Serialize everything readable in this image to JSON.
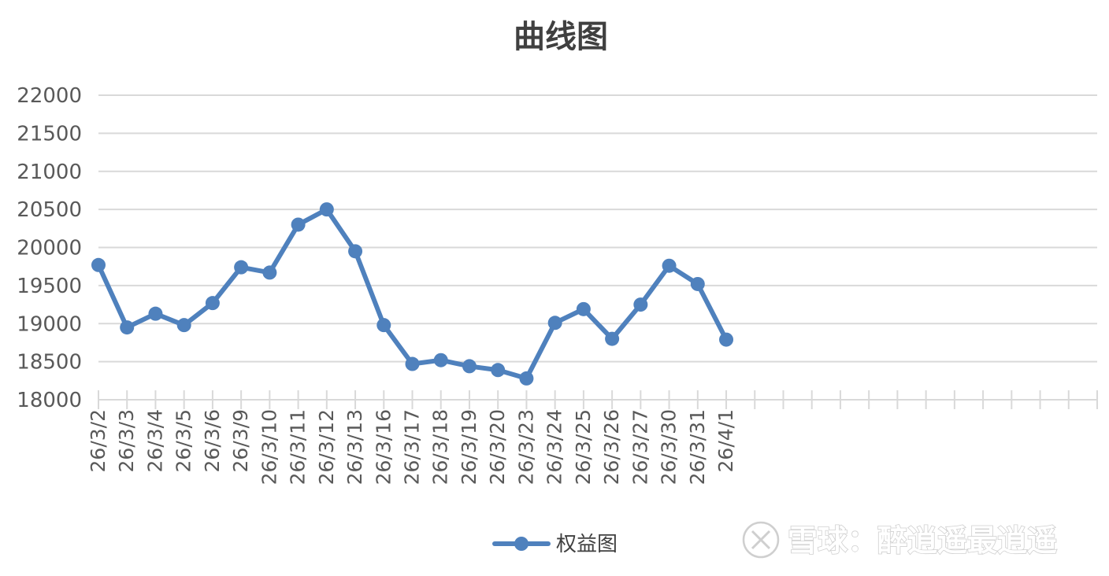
{
  "chart_data": {
    "type": "line",
    "title": "曲线图",
    "xlabel": "",
    "ylabel": "",
    "ylim": [
      18000,
      22000
    ],
    "yticks": [
      18000,
      18500,
      19000,
      19500,
      20000,
      20500,
      21000,
      21500,
      22000
    ],
    "categories": [
      "26/3/2",
      "26/3/3",
      "26/3/4",
      "26/3/5",
      "26/3/6",
      "26/3/9",
      "26/3/10",
      "26/3/11",
      "26/3/12",
      "26/3/13",
      "26/3/16",
      "26/3/17",
      "26/3/18",
      "26/3/19",
      "26/3/20",
      "26/3/23",
      "26/3/24",
      "26/3/25",
      "26/3/26",
      "26/3/27",
      "26/3/30",
      "26/3/31",
      "26/4/1"
    ],
    "total_slots": 35,
    "series": [
      {
        "name": "权益图",
        "color": "#4f81bd",
        "values": [
          19770,
          18950,
          19130,
          18980,
          19270,
          19740,
          19670,
          20300,
          20500,
          19950,
          18980,
          18470,
          18520,
          18440,
          18390,
          18280,
          19010,
          19190,
          18800,
          19250,
          19760,
          19520,
          18790
        ]
      }
    ],
    "grid": true,
    "legend": "bottom-center"
  },
  "watermark": {
    "icon": "xueqiu-logo-icon",
    "text": "雪球：醉逍遥最逍遥"
  }
}
